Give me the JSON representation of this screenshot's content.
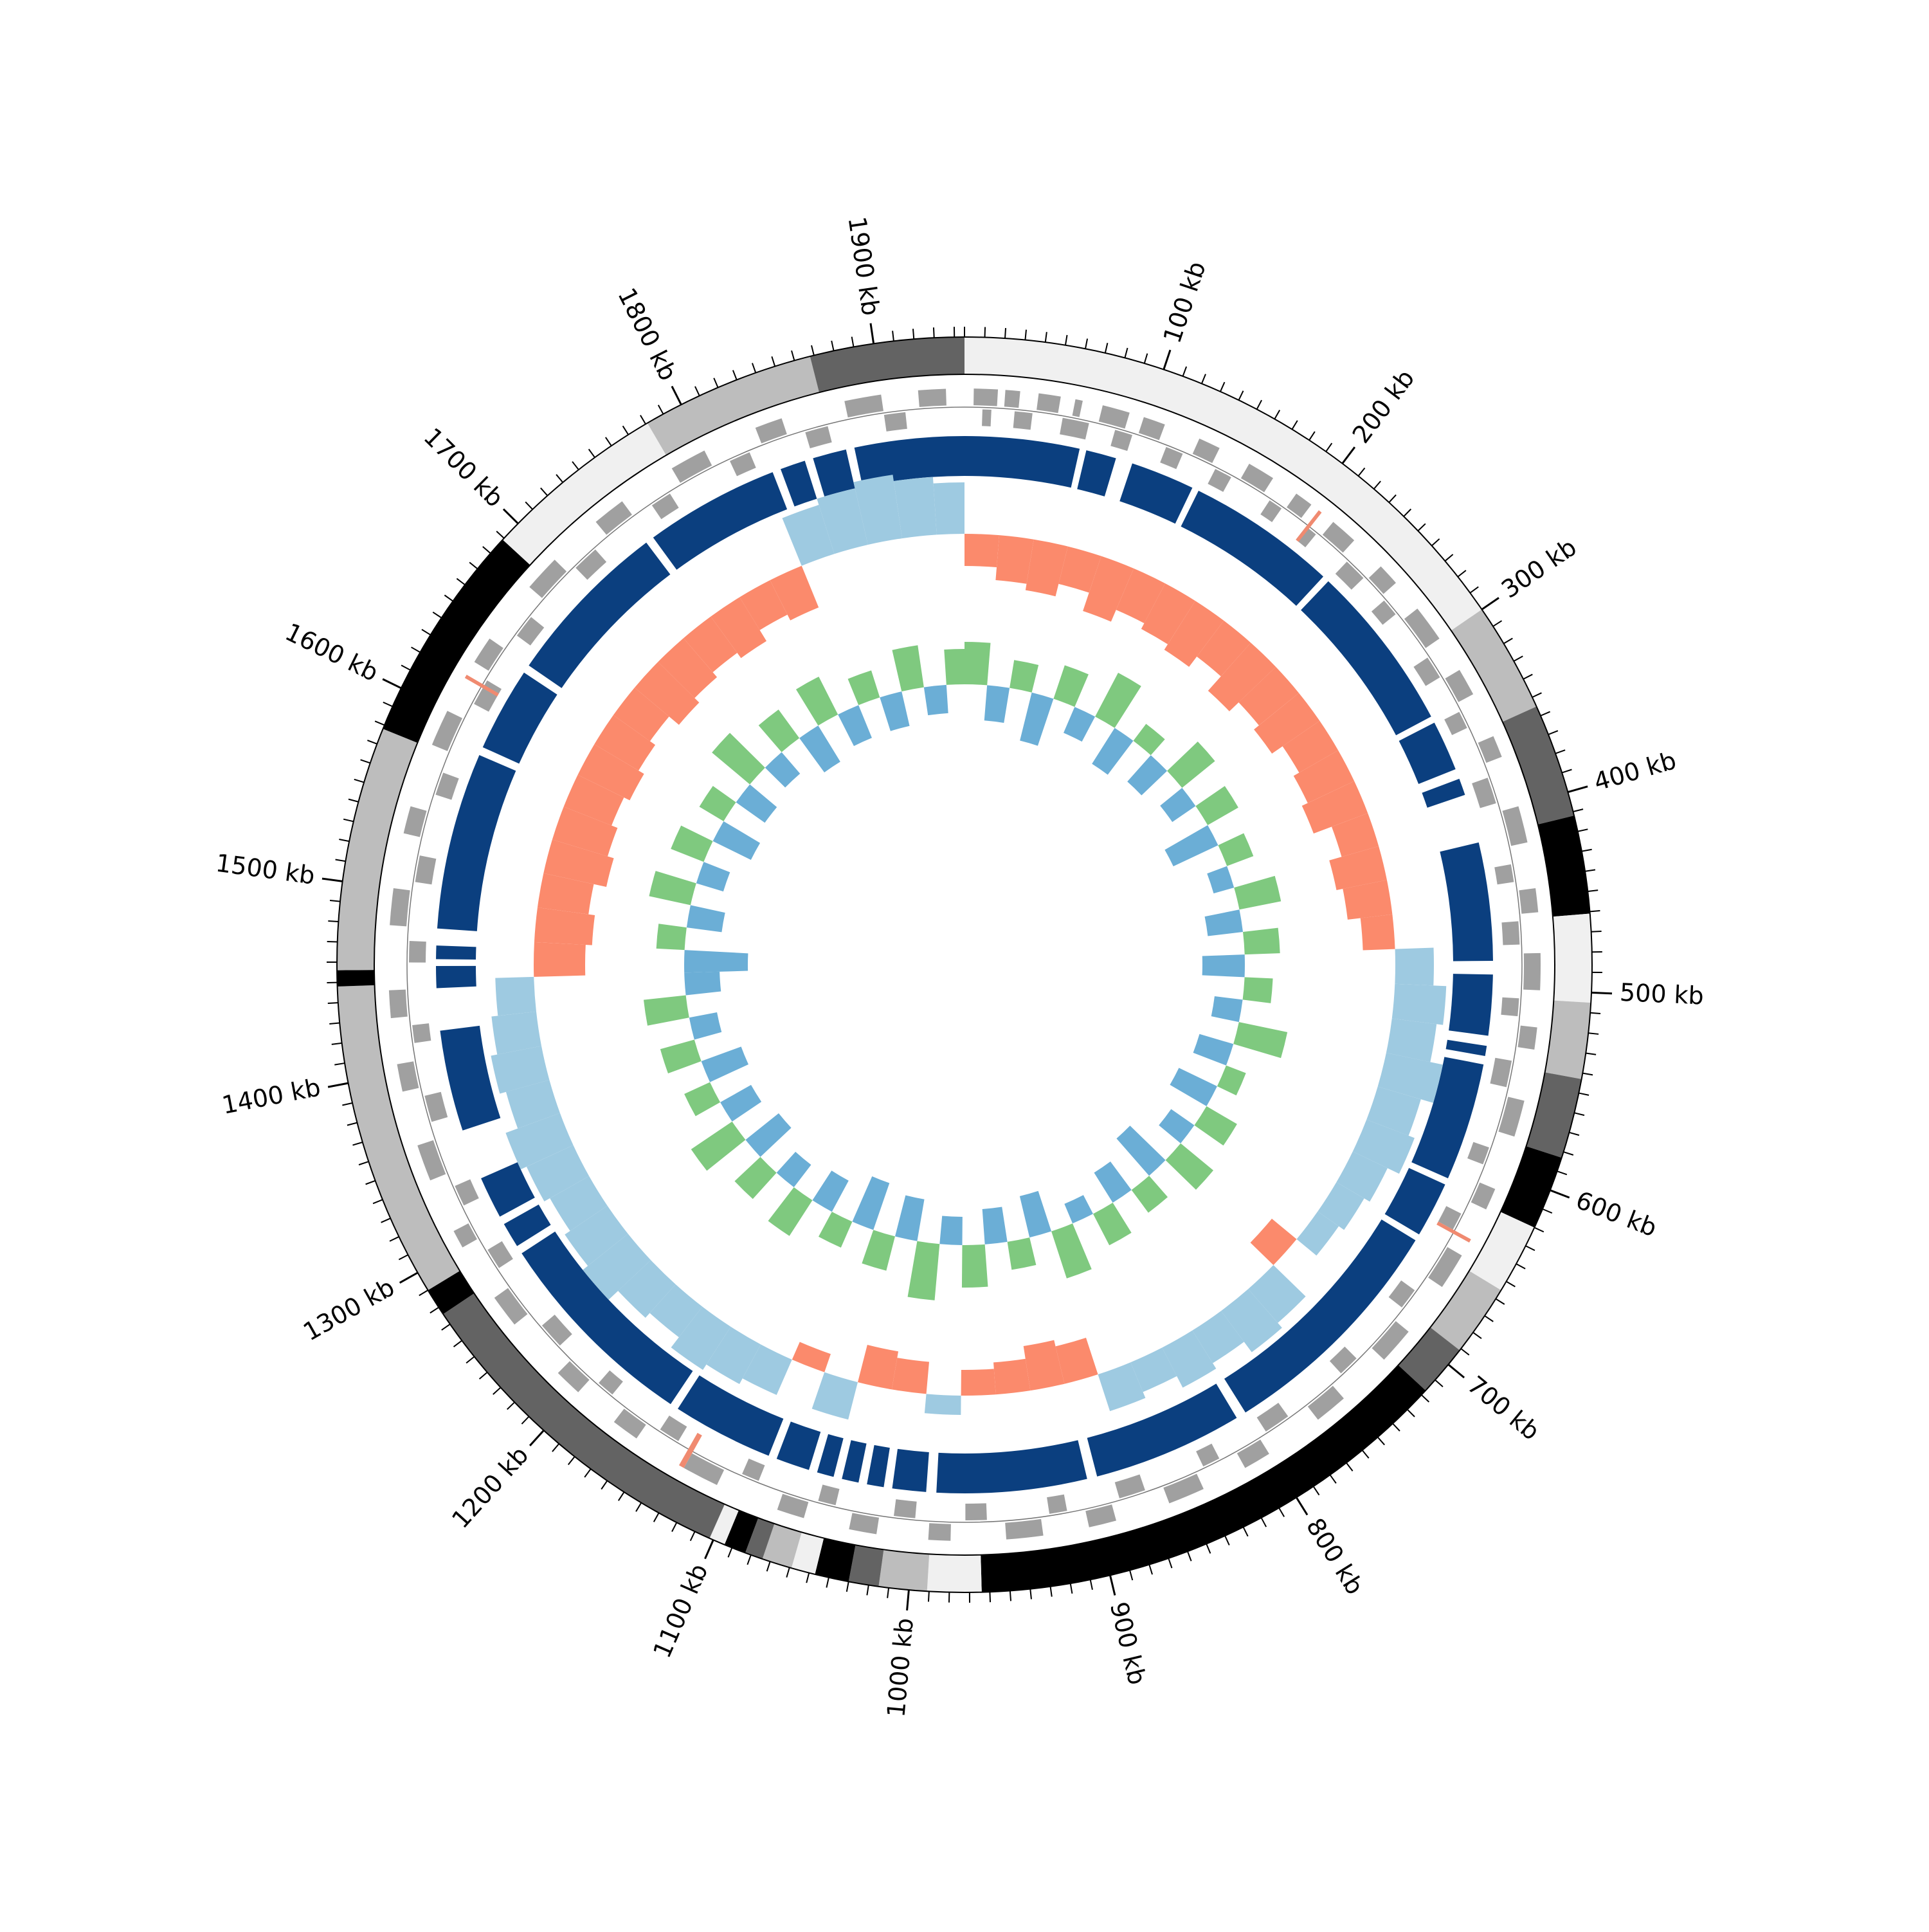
{
  "chart_data": {
    "type": "circular-genome",
    "xlim": [
      0,
      1945
    ],
    "xticks": [
      {
        "value": 100,
        "label": "100 kb"
      },
      {
        "value": 200,
        "label": "200 kb"
      },
      {
        "value": 300,
        "label": "300 kb"
      },
      {
        "value": 400,
        "label": "400 kb"
      },
      {
        "value": 500,
        "label": "500 kb"
      },
      {
        "value": 600,
        "label": "600 kb"
      },
      {
        "value": 700,
        "label": "700 kb"
      },
      {
        "value": 800,
        "label": "800 kb"
      },
      {
        "value": 900,
        "label": "900 kb"
      },
      {
        "value": 1000,
        "label": "1000 kb"
      },
      {
        "value": 1100,
        "label": "1100 kb"
      },
      {
        "value": 1200,
        "label": "1200 kb"
      },
      {
        "value": 1300,
        "label": "1300 kb"
      },
      {
        "value": 1400,
        "label": "1400 kb"
      },
      {
        "value": 1500,
        "label": "1500 kb"
      },
      {
        "value": 1600,
        "label": "1600 kb"
      },
      {
        "value": 1700,
        "label": "1700 kb"
      },
      {
        "value": 1800,
        "label": "1800 kb"
      },
      {
        "value": 1900,
        "label": "1900 kb"
      }
    ],
    "xminor": 10,
    "bands": [
      {
        "start": 0,
        "end": 300,
        "color": "#f0f0f0"
      },
      {
        "start": 300,
        "end": 355,
        "color": "#bdbdbd"
      },
      {
        "start": 355,
        "end": 412,
        "color": "#636363"
      },
      {
        "start": 412,
        "end": 461,
        "color": "#000000"
      },
      {
        "start": 461,
        "end": 505,
        "color": "#f0f0f0"
      },
      {
        "start": 505,
        "end": 543,
        "color": "#bdbdbd"
      },
      {
        "start": 543,
        "end": 583,
        "color": "#636363"
      },
      {
        "start": 583,
        "end": 620,
        "color": "#000000"
      },
      {
        "start": 620,
        "end": 655,
        "color": "#f0f0f0"
      },
      {
        "start": 655,
        "end": 691,
        "color": "#bdbdbd"
      },
      {
        "start": 691,
        "end": 717,
        "color": "#636363"
      },
      {
        "start": 717,
        "end": 964,
        "color": "#000000"
      },
      {
        "start": 964,
        "end": 991,
        "color": "#f0f0f0"
      },
      {
        "start": 991,
        "end": 1015,
        "color": "#bdbdbd"
      },
      {
        "start": 1015,
        "end": 1030,
        "color": "#636363"
      },
      {
        "start": 1030,
        "end": 1047,
        "color": "#000000"
      },
      {
        "start": 1047,
        "end": 1059,
        "color": "#f0f0f0"
      },
      {
        "start": 1059,
        "end": 1074,
        "color": "#bdbdbd"
      },
      {
        "start": 1074,
        "end": 1083,
        "color": "#636363"
      },
      {
        "start": 1083,
        "end": 1094,
        "color": "#000000"
      },
      {
        "start": 1094,
        "end": 1102,
        "color": "#f0f0f0"
      },
      {
        "start": 1102,
        "end": 1276,
        "color": "#636363"
      },
      {
        "start": 1276,
        "end": 1290,
        "color": "#000000"
      },
      {
        "start": 1290,
        "end": 1448,
        "color": "#bdbdbd"
      },
      {
        "start": 1448,
        "end": 1456,
        "color": "#000000"
      },
      {
        "start": 1456,
        "end": 1578,
        "color": "#bdbdbd"
      },
      {
        "start": 1578,
        "end": 1689,
        "color": "#000000"
      },
      {
        "start": 1689,
        "end": 1781,
        "color": "#f0f0f0"
      },
      {
        "start": 1781,
        "end": 1868,
        "color": "#bdbdbd"
      },
      {
        "start": 1868,
        "end": 1945,
        "color": "#636363"
      }
    ],
    "genes": {
      "color": "#a0a0a0",
      "rna_color": "#f08a70",
      "forward": [
        [
          5,
          18
        ],
        [
          22,
          30
        ],
        [
          40,
          52
        ],
        [
          60,
          64
        ],
        [
          75,
          90
        ],
        [
          98,
          110
        ],
        [
          130,
          142
        ],
        [
          160,
          175
        ],
        [
          190,
          200
        ],
        [
          215,
          230
        ],
        [
          250,
          262
        ],
        [
          280,
          300
        ],
        [
          320,
          335
        ],
        [
          360,
          372
        ],
        [
          400,
          420
        ],
        [
          445,
          458
        ],
        [
          480,
          500
        ],
        [
          520,
          532
        ],
        [
          560,
          580
        ],
        [
          610,
          622
        ],
        [
          650,
          670
        ],
        [
          700,
          720
        ],
        [
          750,
          768
        ],
        [
          800,
          815
        ],
        [
          840,
          860
        ],
        [
          890,
          905
        ],
        [
          930,
          950
        ],
        [
          980,
          992
        ],
        [
          1020,
          1035
        ],
        [
          1060,
          1075
        ],
        [
          1110,
          1130
        ],
        [
          1160,
          1175
        ],
        [
          1200,
          1215
        ],
        [
          1250,
          1268
        ],
        [
          1300,
          1310
        ],
        [
          1340,
          1360
        ],
        [
          1390,
          1405
        ],
        [
          1430,
          1445
        ],
        [
          1480,
          1500
        ],
        [
          1530,
          1545
        ],
        [
          1580,
          1600
        ],
        [
          1630,
          1645
        ],
        [
          1680,
          1700
        ],
        [
          1730,
          1748
        ],
        [
          1780,
          1800
        ],
        [
          1830,
          1845
        ],
        [
          1880,
          1900
        ],
        [
          1920,
          1935
        ]
      ],
      "reverse": [
        [
          10,
          15
        ],
        [
          28,
          38
        ],
        [
          55,
          70
        ],
        [
          85,
          95
        ],
        [
          115,
          125
        ],
        [
          145,
          155
        ],
        [
          180,
          188
        ],
        [
          205,
          212
        ],
        [
          235,
          248
        ],
        [
          265,
          275
        ],
        [
          305,
          318
        ],
        [
          340,
          350
        ],
        [
          380,
          395
        ],
        [
          430,
          440
        ],
        [
          462,
          475
        ],
        [
          505,
          515
        ],
        [
          540,
          555
        ],
        [
          590,
          600
        ],
        [
          630,
          640
        ],
        [
          680,
          692
        ],
        [
          730,
          742
        ],
        [
          780,
          795
        ],
        [
          825,
          835
        ],
        [
          870,
          885
        ],
        [
          915,
          925
        ],
        [
          960,
          972
        ],
        [
          1000,
          1012
        ],
        [
          1045,
          1055
        ],
        [
          1090,
          1100
        ],
        [
          1140,
          1152
        ],
        [
          1185,
          1195
        ],
        [
          1225,
          1240
        ],
        [
          1280,
          1292
        ],
        [
          1320,
          1332
        ],
        [
          1370,
          1385
        ],
        [
          1415,
          1425
        ],
        [
          1460,
          1472
        ],
        [
          1505,
          1520
        ],
        [
          1555,
          1568
        ],
        [
          1610,
          1625
        ],
        [
          1655,
          1668
        ],
        [
          1705,
          1720
        ],
        [
          1760,
          1772
        ],
        [
          1810,
          1822
        ],
        [
          1855,
          1868
        ],
        [
          1900,
          1912
        ]
      ],
      "rna": [
        [
          205,
          207
        ],
        [
          640,
          642
        ],
        [
          1130,
          1133
        ],
        [
          1620,
          1622
        ]
      ]
    },
    "contigs": {
      "color": "#0b3f7f",
      "spans": [
        [
          0,
          68
        ],
        [
          72,
          90
        ],
        [
          100,
          138
        ],
        [
          142,
          231
        ],
        [
          235,
          335
        ],
        [
          339,
          369
        ],
        [
          375,
          385
        ],
        [
          414,
          484
        ],
        [
          492,
          528
        ],
        [
          534,
          540
        ],
        [
          545,
          615
        ],
        [
          619,
          652
        ],
        [
          656,
          799
        ],
        [
          805,
          894
        ],
        [
          900,
          989
        ],
        [
          995,
          1015
        ],
        [
          1020,
          1030
        ],
        [
          1035,
          1045
        ],
        [
          1050,
          1060
        ],
        [
          1065,
          1085
        ],
        [
          1090,
          1150
        ],
        [
          1155,
          1280
        ],
        [
          1285,
          1300
        ],
        [
          1305,
          1330
        ],
        [
          1360,
          1420
        ],
        [
          1445,
          1458
        ],
        [
          1462,
          1470
        ],
        [
          1480,
          1585
        ],
        [
          1590,
          1640
        ],
        [
          1645,
          1745
        ],
        [
          1750,
          1830
        ],
        [
          1835,
          1850
        ],
        [
          1855,
          1875
        ],
        [
          1880,
          1945
        ]
      ]
    },
    "x": [
      0,
      25,
      50,
      75,
      100,
      125,
      150,
      175,
      200,
      225,
      250,
      275,
      300,
      325,
      350,
      375,
      400,
      425,
      450,
      475,
      500,
      525,
      550,
      575,
      600,
      625,
      650,
      675,
      700,
      725,
      750,
      775,
      800,
      825,
      850,
      875,
      900,
      925,
      950,
      975,
      1000,
      1025,
      1050,
      1075,
      1100,
      1125,
      1150,
      1175,
      1200,
      1225,
      1250,
      1275,
      1300,
      1325,
      1350,
      1375,
      1400,
      1425,
      1450,
      1475,
      1500,
      1525,
      1550,
      1575,
      1600,
      1625,
      1650,
      1675,
      1700,
      1725,
      1750,
      1775,
      1800,
      1825,
      1850,
      1875,
      1900,
      1925
    ],
    "skew": {
      "colors": [
        "#fb8a6c",
        "#9ecae1"
      ],
      "values": [
        0.5,
        0.7,
        0.8,
        0.6,
        0.9,
        0.7,
        0.8,
        0.9,
        0.7,
        1.0,
        0.8,
        0.9,
        0.7,
        0.8,
        0.9,
        0.6,
        0.8,
        0.7,
        0.5,
        -0.6,
        -0.8,
        -0.7,
        -0.9,
        -0.7,
        -0.8,
        -0.6,
        -0.5,
        -0.4,
        0.5,
        -0.7,
        -0.8,
        -0.6,
        -0.7,
        -0.5,
        -0.6,
        0.6,
        0.7,
        0.5,
        0.4,
        -0.3,
        0.5,
        0.6,
        -0.6,
        0.3,
        -0.6,
        -0.7,
        -0.8,
        -0.6,
        -0.7,
        -0.9,
        -0.8,
        -0.7,
        -0.8,
        -0.9,
        -0.7,
        -0.8,
        -0.7,
        -0.6,
        0.8,
        0.9,
        0.8,
        1.0,
        0.9,
        0.8,
        0.9,
        0.8,
        0.7,
        0.9,
        0.8,
        0.7,
        0.8,
        0.6,
        0.7,
        -0.8,
        -0.9,
        -1.0,
        -0.9,
        -0.8
      ]
    },
    "gc": {
      "colors": [
        "#6baed6",
        "#7fc97f"
      ],
      "values": [
        0.6,
        -0.5,
        0.4,
        -0.7,
        0.5,
        -0.4,
        0.7,
        -0.6,
        0.3,
        -0.5,
        0.6,
        -0.4,
        0.5,
        -0.7,
        0.4,
        -0.3,
        0.6,
        -0.5,
        0.5,
        -0.6,
        0.4,
        -0.4,
        0.7,
        -0.5,
        0.3,
        -0.6,
        0.5,
        -0.4,
        0.6,
        -0.7,
        0.4,
        -0.5,
        0.5,
        -0.3,
        0.7,
        -0.6,
        0.4,
        -0.5,
        0.6,
        -0.4,
        0.8,
        -0.6,
        0.5,
        -0.7,
        0.4,
        -0.5,
        0.6,
        -0.4,
        0.5,
        -0.6,
        0.7,
        -0.5,
        0.4,
        -0.6,
        0.5,
        -0.4,
        0.6,
        -0.5,
        -0.9,
        0.4,
        -0.5,
        0.6,
        -0.4,
        0.5,
        -0.6,
        0.4,
        -0.5,
        0.7,
        -0.4,
        0.5,
        -0.6,
        0.6,
        -0.5,
        0.4,
        -0.5,
        0.6,
        -0.4,
        0.5
      ]
    }
  }
}
